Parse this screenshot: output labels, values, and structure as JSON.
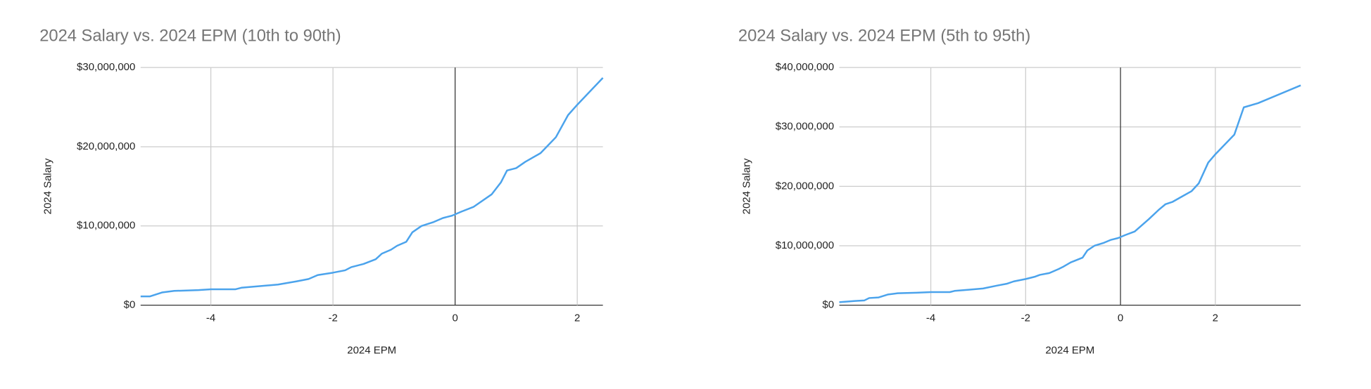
{
  "chart_data": [
    {
      "type": "line",
      "title": "2024 Salary vs. 2024 EPM (10th to 90th)",
      "x_label": "2024 EPM",
      "y_label": "2024 Salary",
      "xlim": [
        -5.15,
        2.42
      ],
      "xticks": [
        -4,
        -2,
        0,
        2
      ],
      "ylim": [
        0,
        30000000
      ],
      "yticks": [
        {
          "value": 0,
          "label": "$0"
        },
        {
          "value": 10000000,
          "label": "$10,000,000"
        },
        {
          "value": 20000000,
          "label": "$20,000,000"
        },
        {
          "value": 30000000,
          "label": "$30,000,000"
        }
      ],
      "grid": true,
      "x": [
        -5.15,
        -5.0,
        -4.8,
        -4.6,
        -4.2,
        -4.0,
        -3.6,
        -3.5,
        -3.2,
        -2.9,
        -2.6,
        -2.4,
        -2.25,
        -2.0,
        -1.8,
        -1.7,
        -1.5,
        -1.3,
        -1.2,
        -1.05,
        -0.95,
        -0.8,
        -0.7,
        -0.55,
        -0.35,
        -0.2,
        -0.05,
        0.1,
        0.3,
        0.6,
        0.75,
        0.85,
        1.0,
        1.15,
        1.4,
        1.5,
        1.65,
        1.85,
        2.0,
        2.42
      ],
      "series": [
        {
          "color": "#4ba3ec",
          "values": [
            1100000,
            1100000,
            1600000,
            1800000,
            1900000,
            2000000,
            2000000,
            2200000,
            2400000,
            2600000,
            3000000,
            3300000,
            3800000,
            4100000,
            4400000,
            4800000,
            5200000,
            5800000,
            6500000,
            7000000,
            7500000,
            8000000,
            9200000,
            10000000,
            10500000,
            11000000,
            11300000,
            11800000,
            12400000,
            14000000,
            15500000,
            17000000,
            17300000,
            18100000,
            19200000,
            20000000,
            21200000,
            24000000,
            25300000,
            28700000
          ]
        }
      ]
    },
    {
      "type": "line",
      "title": "2024 Salary vs. 2024 EPM (5th to 95th)",
      "x_label": "2024 EPM",
      "y_label": "2024 Salary",
      "xlim": [
        -5.93,
        3.8
      ],
      "xticks": [
        -4,
        -2,
        0,
        2
      ],
      "ylim": [
        0,
        40000000
      ],
      "yticks": [
        {
          "value": 0,
          "label": "$0"
        },
        {
          "value": 10000000,
          "label": "$10,000,000"
        },
        {
          "value": 20000000,
          "label": "$20,000,000"
        },
        {
          "value": 30000000,
          "label": "$30,000,000"
        },
        {
          "value": 40000000,
          "label": "$40,000,000"
        }
      ],
      "grid": true,
      "x": [
        -5.93,
        -5.6,
        -5.4,
        -5.3,
        -5.1,
        -4.9,
        -4.7,
        -4.3,
        -4.0,
        -3.6,
        -3.5,
        -3.2,
        -2.9,
        -2.6,
        -2.4,
        -2.25,
        -2.0,
        -1.8,
        -1.7,
        -1.5,
        -1.3,
        -1.2,
        -1.05,
        -0.8,
        -0.7,
        -0.55,
        -0.35,
        -0.2,
        -0.05,
        0.1,
        0.3,
        0.6,
        0.8,
        0.95,
        1.1,
        1.3,
        1.5,
        1.65,
        1.85,
        2.0,
        2.4,
        2.6,
        2.9,
        3.8
      ],
      "series": [
        {
          "color": "#4ba3ec",
          "values": [
            500000,
            700000,
            800000,
            1200000,
            1300000,
            1800000,
            2000000,
            2100000,
            2200000,
            2200000,
            2400000,
            2600000,
            2800000,
            3300000,
            3600000,
            4000000,
            4400000,
            4800000,
            5100000,
            5400000,
            6100000,
            6500000,
            7200000,
            8000000,
            9200000,
            10000000,
            10500000,
            11000000,
            11300000,
            11800000,
            12400000,
            14500000,
            16000000,
            17000000,
            17400000,
            18300000,
            19200000,
            20500000,
            24000000,
            25400000,
            28700000,
            33300000,
            34000000,
            37000000
          ]
        }
      ]
    }
  ]
}
